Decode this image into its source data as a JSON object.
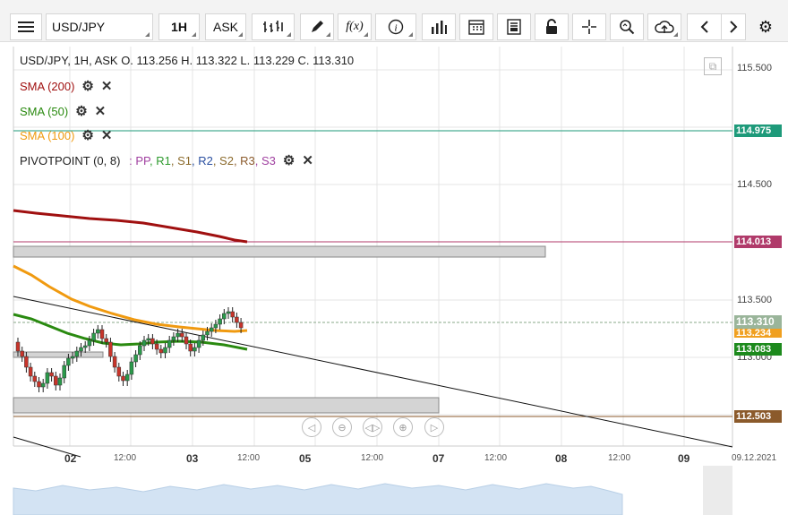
{
  "toolbar": {
    "symbol": "USD/JPY",
    "timeframe": "1H",
    "price_type": "ASK",
    "icons": [
      "menu-icon",
      "bar-chart-type-icon",
      "draw-pencil-icon",
      "function-icon",
      "info-icon",
      "volume-bars-icon",
      "calendar-icon",
      "report-icon",
      "lock-icon",
      "crosshair-icon",
      "zoom-icon",
      "cloud-upload-icon",
      "chevron-left-icon",
      "chevron-right-icon",
      "gear-icon"
    ]
  },
  "legend": {
    "ohlc": "USD/JPY, 1H, ASK   O. 113.256 H. 113.322 L. 113.229 C. 113.310",
    "sma200": "SMA (200)",
    "sma50": "SMA (50)",
    "sma100": "SMA (100)",
    "pivot_prefix": "PIVOTPOINT (0, 8)",
    "pivot_sep": ":",
    "pivot_labels": [
      {
        "t": "PP",
        "c": "#a040a0"
      },
      {
        "t": "R1",
        "c": "#2e9a2e"
      },
      {
        "t": "S1",
        "c": "#8b6a2b"
      },
      {
        "t": "R2",
        "c": "#2a4fa0"
      },
      {
        "t": "S2",
        "c": "#8b6a2b"
      },
      {
        "t": "R3",
        "c": "#8b5a2b"
      },
      {
        "t": "S3",
        "c": "#a040a0"
      }
    ]
  },
  "price_axis": {
    "ticks": [
      "115.500",
      "114.500",
      "113.500",
      "113.000"
    ],
    "levels": [
      {
        "value": "114.975",
        "color": "#1e9a7a"
      },
      {
        "value": "114.013",
        "color": "#b03a6a"
      },
      {
        "value": "113.310",
        "color": "#9ab59a"
      },
      {
        "value": "113.234",
        "color": "#f0a020"
      },
      {
        "value": "113.083",
        "color": "#1d8a1d"
      },
      {
        "value": "112.503",
        "color": "#8b5a2b"
      }
    ]
  },
  "time_axis": {
    "labels": [
      {
        "t": "02",
        "style": "b"
      },
      {
        "t": "12:00",
        "style": "s"
      },
      {
        "t": "03",
        "style": "b"
      },
      {
        "t": "12:00",
        "style": "s"
      },
      {
        "t": "05",
        "style": "b"
      },
      {
        "t": "12:00",
        "style": "s"
      },
      {
        "t": "07",
        "style": "b"
      },
      {
        "t": "12:00",
        "style": "s"
      },
      {
        "t": "08",
        "style": "b"
      },
      {
        "t": "12:00",
        "style": "s"
      },
      {
        "t": "09",
        "style": "b"
      },
      {
        "t": "09.12.2021",
        "style": "s"
      }
    ]
  },
  "colors": {
    "sma200": "#a01010",
    "sma50": "#2a8a10",
    "sma100": "#f09a10"
  }
}
